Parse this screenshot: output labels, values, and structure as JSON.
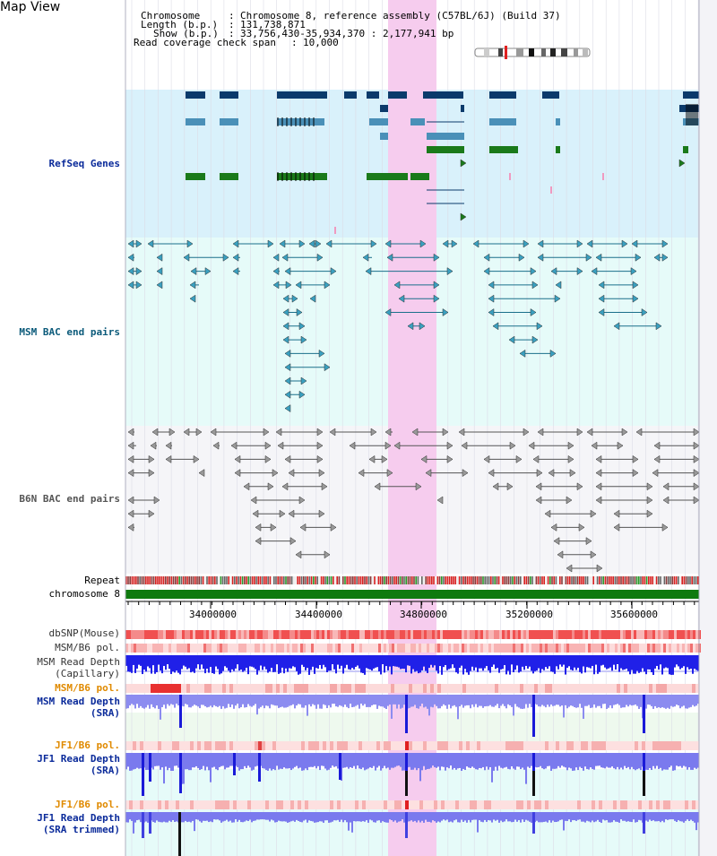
{
  "view": {
    "title": "Map View"
  },
  "header": {
    "chromosome_label": "Chromosome",
    "chromosome_value": "Chromosome 8, reference assembly (C57BL/6J) (Build 37)",
    "length_label": "Length (b.p.)",
    "length_value": "131,738,871",
    "show_label": "Show (b.p.)",
    "show_value": "33,756,430-35,934,370 : 2,177,941 bp",
    "span_label": "Read coverage check span",
    "span_value": "10,000"
  },
  "tracks": {
    "refseq": "RefSeq Genes",
    "msm_bac": "MSM BAC end pairs",
    "b6n_bac": "B6N BAC end pairs",
    "repeat": "Repeat",
    "chromosome": "chromosome 8",
    "dbsnp": "dbSNP(Mouse)",
    "msm_pol": "MSM/B6 pol.",
    "msm_depth_cap_1": "MSM Read Depth",
    "msm_depth_cap_2": "(Capillary)",
    "msm_pol_2": "MSM/B6 pol.",
    "msm_depth_sra_1": "MSM Read Depth",
    "msm_depth_sra_2": "(SRA)",
    "jf1_pol": "JF1/B6 pol.",
    "jf1_depth_1": "JF1 Read Depth",
    "jf1_depth_2": "(SRA)",
    "jf1_pol_2": "JF1/B6 pol.",
    "jf1_trim_1": "JF1 Read Depth",
    "jf1_trim_2": "(SRA trimmed)"
  },
  "axis": {
    "ticks": [
      "34000000",
      "34400000",
      "34800000",
      "35200000",
      "35600000"
    ]
  },
  "colors": {
    "refseq_bg": "#d9f1fb",
    "msm_bac_bg": "#e6fbf9",
    "b6n_bac_bg": "#f5f5f8",
    "highlight": "#f6d0f0",
    "gene_dark": "#0b3a6b",
    "gene_mid": "#4a90b8",
    "gene_green": "#1a7a1a",
    "msm_bac_line": "#1a6f8a",
    "b6n_bac_line": "#555555",
    "chrom_green": "#0f7a0f",
    "depth_blue": "#1a1aee",
    "depth_light": "#8c8cf0",
    "label_blue": "#0a2a9a",
    "label_orange": "#e08a00",
    "label_teal": "#0b5a7a"
  }
}
